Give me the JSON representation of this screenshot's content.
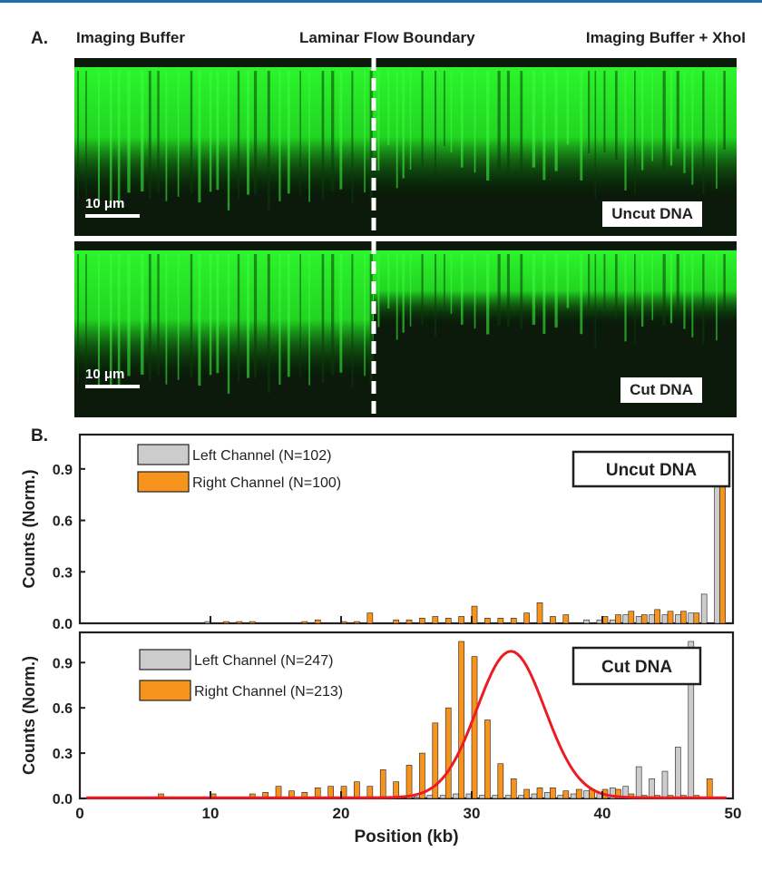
{
  "panel_a": {
    "label": "A.",
    "header_left": "Imaging Buffer",
    "header_center": "Laminar Flow Boundary",
    "header_right": "Imaging Buffer + XhoI",
    "top_image": {
      "scale_label": "10 μm",
      "tag": "Uncut DNA"
    },
    "bottom_image": {
      "scale_label": "10 μm",
      "tag": "Cut DNA"
    }
  },
  "panel_b": {
    "label": "B."
  },
  "chart_data": [
    {
      "type": "bar",
      "title": "",
      "tag": "Uncut DNA",
      "xlabel": "",
      "ylabel": "Counts (Norm.)",
      "xlim": [
        0,
        50
      ],
      "ylim": [
        0,
        1.1
      ],
      "yticks": [
        "0.0",
        "0.3",
        "0.6",
        "0.9"
      ],
      "x": [
        10,
        11,
        12,
        13,
        17,
        18,
        20,
        21,
        22,
        24,
        25,
        26,
        27,
        28,
        29,
        30,
        31,
        32,
        33,
        34,
        35,
        36,
        37,
        38,
        39,
        40,
        41,
        42,
        43,
        44,
        45,
        46,
        47,
        48,
        49
      ],
      "series": [
        {
          "name": "Left Channel (N=102)",
          "color": "#cccccc",
          "values": [
            0.01,
            0.0,
            0.0,
            0.0,
            0.0,
            0.0,
            0.0,
            0.0,
            0.0,
            0.0,
            0.0,
            0.0,
            0.0,
            0.0,
            0.0,
            0.0,
            0.0,
            0.0,
            0.0,
            0.0,
            0.0,
            0.0,
            0.0,
            0.0,
            0.02,
            0.02,
            0.02,
            0.05,
            0.04,
            0.05,
            0.05,
            0.05,
            0.06,
            0.17,
            1.0
          ]
        },
        {
          "name": "Right Channel (N=100)",
          "color": "#f7941d",
          "values": [
            0.0,
            0.01,
            0.01,
            0.01,
            0.01,
            0.02,
            0.01,
            0.01,
            0.06,
            0.02,
            0.02,
            0.03,
            0.04,
            0.03,
            0.04,
            0.1,
            0.03,
            0.03,
            0.03,
            0.06,
            0.12,
            0.04,
            0.05,
            0.0,
            0.0,
            0.04,
            0.05,
            0.07,
            0.05,
            0.08,
            0.07,
            0.07,
            0.06,
            0.0,
            1.0
          ]
        }
      ]
    },
    {
      "type": "bar",
      "title": "",
      "tag": "Cut DNA",
      "xlabel": "Position (kb)",
      "ylabel": "Counts (Norm.)",
      "xlim": [
        0,
        50
      ],
      "ylim": [
        0,
        1.1
      ],
      "xticks": [
        "0",
        "10",
        "20",
        "30",
        "40",
        "50"
      ],
      "yticks": [
        "0.0",
        "0.3",
        "0.6",
        "0.9"
      ],
      "x": [
        6,
        10,
        13,
        14,
        15,
        16,
        17,
        18,
        19,
        20,
        21,
        22,
        23,
        24,
        25,
        26,
        27,
        28,
        29,
        30,
        31,
        32,
        33,
        34,
        35,
        36,
        37,
        38,
        39,
        40,
        41,
        42,
        43,
        44,
        45,
        46,
        47,
        48,
        49
      ],
      "series": [
        {
          "name": "Left Channel (N=247)",
          "color": "#cccccc",
          "values": [
            0.0,
            0.0,
            0.0,
            0.0,
            0.0,
            0.0,
            0.0,
            0.0,
            0.0,
            0.0,
            0.0,
            0.0,
            0.0,
            0.0,
            0.0,
            0.01,
            0.02,
            0.02,
            0.03,
            0.03,
            0.02,
            0.02,
            0.02,
            0.02,
            0.03,
            0.04,
            0.02,
            0.03,
            0.05,
            0.04,
            0.07,
            0.08,
            0.21,
            0.13,
            0.18,
            0.34,
            1.04,
            0.0,
            0.0
          ]
        },
        {
          "name": "Right Channel (N=213)",
          "color": "#f7941d",
          "values": [
            0.03,
            0.03,
            0.03,
            0.04,
            0.08,
            0.05,
            0.04,
            0.07,
            0.08,
            0.08,
            0.11,
            0.08,
            0.19,
            0.11,
            0.22,
            0.3,
            0.5,
            0.6,
            1.04,
            0.94,
            0.52,
            0.23,
            0.13,
            0.06,
            0.07,
            0.07,
            0.05,
            0.06,
            0.06,
            0.06,
            0.06,
            0.03,
            0.02,
            0.02,
            0.02,
            0.02,
            0.02,
            0.13,
            0.0
          ]
        }
      ],
      "fit": {
        "type": "gaussian",
        "color": "#ed1c24",
        "amplitude": 0.97,
        "mean": 33.0,
        "sigma": 2.6
      }
    }
  ]
}
